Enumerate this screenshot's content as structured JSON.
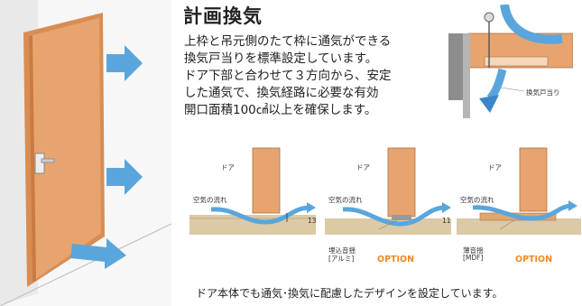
{
  "heading": "計画換気",
  "description": [
    "上枠と吊元側のたて枠に通気ができる",
    "換気戸当りを標準設定しています。",
    "ドア下部と合わせて３方向から、安定",
    "した通気で、換気経路に必要な有効",
    "開口面積100㎠以上を確保します。"
  ],
  "detail_top": {
    "stop_label": "換気戸当り"
  },
  "sections": [
    {
      "door_label": "ドア",
      "flow_label": "空気の流れ",
      "gap": "13",
      "part_label": "",
      "option": ""
    },
    {
      "door_label": "ドア",
      "flow_label": "空気の流れ",
      "gap": "11",
      "part_label": [
        "埋込音揺",
        "[アルミ]"
      ],
      "option": "OPTION"
    },
    {
      "door_label": "ドア",
      "flow_label": "空気の流れ",
      "gap": "",
      "part_label": [
        "薄音揺",
        "[MDF]"
      ],
      "option": "OPTION"
    }
  ],
  "footer": "ドア本体でも通気･換気に配慮したデザインを設定しています。",
  "colors": {
    "door": "#e7a46f",
    "door_edge": "#c97b43",
    "arrow": "#5aa6dc",
    "option": "#f08a24",
    "floor": "#dcc9a6"
  }
}
